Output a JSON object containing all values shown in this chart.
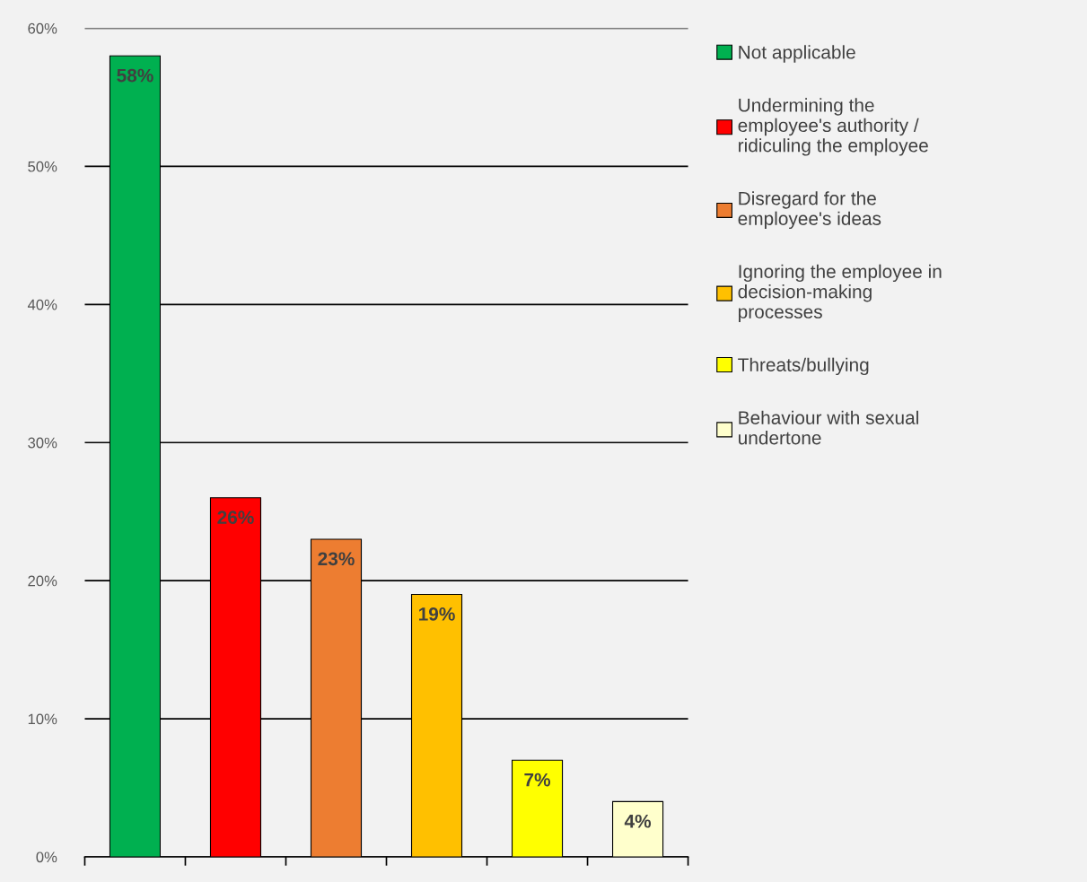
{
  "chart_data": {
    "type": "bar",
    "categories": [
      null,
      null,
      null,
      null,
      null,
      null
    ],
    "series": [
      {
        "name": "Not applicable",
        "color": "#00b050",
        "values": [
          58,
          null,
          null,
          null,
          null,
          null
        ],
        "value_labels": [
          "58%",
          null,
          null,
          null,
          null,
          null
        ]
      },
      {
        "name": "Undermining the employee's authority / ridiculing the employee",
        "color": "#ff0000",
        "values": [
          null,
          26,
          null,
          null,
          null,
          null
        ],
        "value_labels": [
          null,
          "26%",
          null,
          null,
          null,
          null
        ]
      },
      {
        "name": "Disregard for the employee's ideas",
        "color": "#ed7d31",
        "values": [
          null,
          null,
          23,
          null,
          null,
          null
        ],
        "value_labels": [
          null,
          null,
          "23%",
          null,
          null,
          null
        ]
      },
      {
        "name": "Ignoring the employee in decision-making processes",
        "color": "#ffc000",
        "values": [
          null,
          null,
          null,
          19,
          null,
          null
        ],
        "value_labels": [
          null,
          null,
          null,
          "19%",
          null,
          null
        ]
      },
      {
        "name": "Threats/bullying",
        "color": "#ffff00",
        "values": [
          null,
          null,
          null,
          null,
          7,
          null
        ],
        "value_labels": [
          null,
          null,
          null,
          null,
          "7%",
          null
        ]
      },
      {
        "name": "Behaviour with sexual undertone",
        "color": "#ffffcc",
        "values": [
          null,
          null,
          null,
          null,
          null,
          4
        ],
        "value_labels": [
          null,
          null,
          null,
          null,
          null,
          "4%"
        ]
      }
    ],
    "ylim": [
      0,
      60
    ],
    "yticks": [
      {
        "value": 0,
        "label": "0%"
      },
      {
        "value": 10,
        "label": "10%"
      },
      {
        "value": 20,
        "label": "20%"
      },
      {
        "value": 30,
        "label": "30%"
      },
      {
        "value": 40,
        "label": "40%"
      },
      {
        "value": 50,
        "label": "50%"
      },
      {
        "value": 60,
        "label": "60%"
      }
    ],
    "grid": "y",
    "legend": "right",
    "tick_labels": "y"
  }
}
